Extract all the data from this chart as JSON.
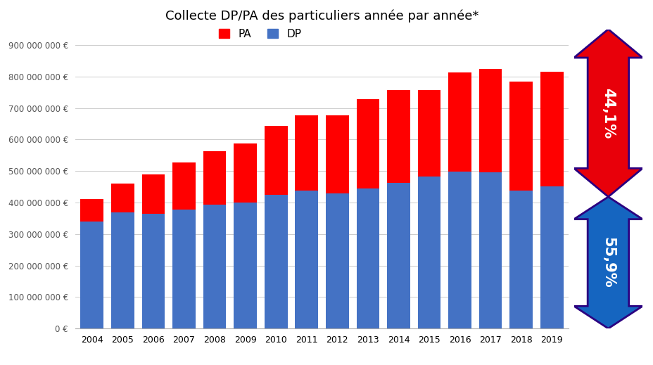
{
  "title": "Collecte DP/PA des particuliers année par année*",
  "years": [
    2004,
    2005,
    2006,
    2007,
    2008,
    2009,
    2010,
    2011,
    2012,
    2013,
    2014,
    2015,
    2016,
    2017,
    2018,
    2019
  ],
  "dp_values": [
    340000000,
    368000000,
    363000000,
    378000000,
    392000000,
    400000000,
    425000000,
    438000000,
    428000000,
    445000000,
    462000000,
    483000000,
    498000000,
    495000000,
    438000000,
    452000000
  ],
  "pa_values": [
    72000000,
    92000000,
    125000000,
    148000000,
    170000000,
    188000000,
    218000000,
    238000000,
    248000000,
    283000000,
    295000000,
    273000000,
    315000000,
    330000000,
    345000000,
    363000000
  ],
  "dp_color": "#4472C4",
  "pa_color": "#FF0000",
  "background_color": "#FFFFFF",
  "ylim": [
    0,
    950000000
  ],
  "yticks": [
    0,
    100000000,
    200000000,
    300000000,
    400000000,
    500000000,
    600000000,
    700000000,
    800000000,
    900000000
  ],
  "ytick_labels": [
    "0 €",
    "100 000 000 €",
    "200 000 000 €",
    "300 000 000 €",
    "400 000 000 €",
    "500 000 000 €",
    "600 000 000 €",
    "700 000 000 €",
    "800 000 000 €",
    "900 000 000 €"
  ],
  "pa_pct": "44,1%",
  "dp_pct": "55,9%",
  "arrow_red_color": "#E8000A",
  "arrow_blue_color": "#1565C0",
  "arrow_border_color": "#2B0080",
  "bar_width": 0.75
}
